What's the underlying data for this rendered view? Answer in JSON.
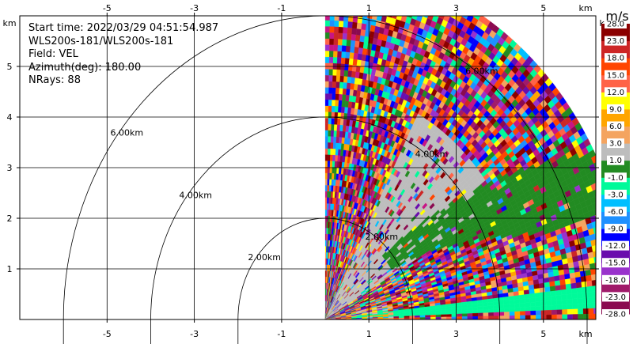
{
  "chart_data": {
    "type": "ppi-radar-scan",
    "info": {
      "start_time": "Start time: 2022/03/29 04:51:54.987",
      "instrument": "WLS200s-181/WLS200s-181",
      "field": "Field: VEL",
      "azimuth": "Azimuth(deg): 180.00",
      "nrays": "NRays: 88"
    },
    "axis_unit": "km",
    "x_ticks": [
      "-5",
      "-3",
      "-1",
      "1",
      "3",
      "5"
    ],
    "x_tick_values": [
      -5,
      -3,
      -1,
      1,
      3,
      5
    ],
    "y_ticks": [
      "1",
      "2",
      "3",
      "4",
      "5"
    ],
    "y_tick_values": [
      1,
      2,
      3,
      4,
      5
    ],
    "xlim": [
      -7.0,
      6.2
    ],
    "ylim": [
      0,
      6.0
    ],
    "grid": true,
    "range_rings_km": [
      2,
      4,
      6
    ],
    "ring_labels": [
      "2.00km",
      "4.00km",
      "6.00km"
    ],
    "max_range_km": 7.0,
    "sector_deg": [
      0,
      90
    ],
    "colorbar": {
      "unit": "m/s",
      "labels": [
        "-28.0",
        "-23.0",
        "-18.0",
        "-15.0",
        "-12.0",
        "-9.0",
        "-6.0",
        "-3.0",
        "-1.0",
        "1.0",
        "3.0",
        "6.0",
        "9.0",
        "12.0",
        "15.0",
        "18.0",
        "23.0",
        "28.0"
      ],
      "colors": [
        "#8b0a50",
        "#a01a6a",
        "#9932cc",
        "#6a0dad",
        "#0000ff",
        "#1e90ff",
        "#00bfff",
        "#00fa9a",
        "#228b22",
        "#bdbdbd",
        "#f4a460",
        "#ffa500",
        "#ffff00",
        "#ff6347",
        "#ff4500",
        "#cd2626",
        "#8b0000",
        "#c71585"
      ]
    }
  }
}
